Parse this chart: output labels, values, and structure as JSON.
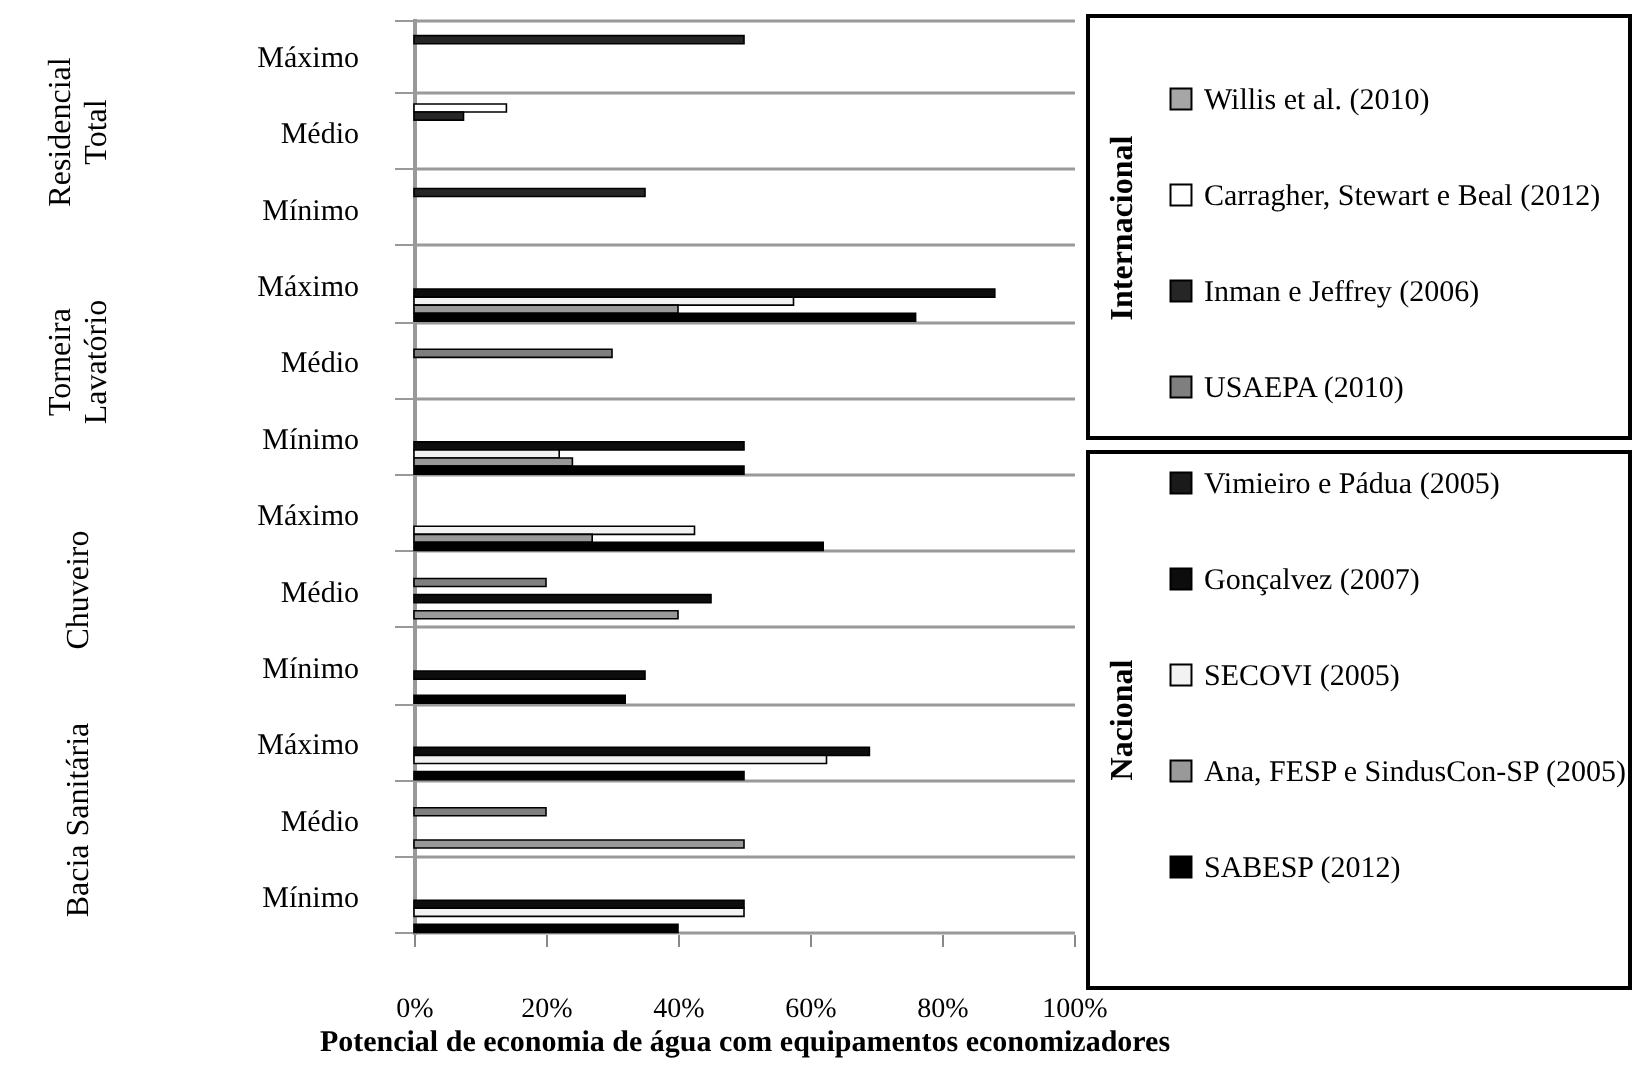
{
  "chart_data": {
    "type": "bar",
    "orientation": "horizontal",
    "categories": [
      "Máximo",
      "Médio",
      "Mínimo",
      "Máximo",
      "Médio",
      "Mínimo",
      "Máximo",
      "Médio",
      "Mínimo",
      "Máximo",
      "Médio",
      "Mínimo"
    ],
    "series": [
      {
        "name": "Willis et al. (2010)",
        "color": "#a6a6a6",
        "values": [
          null,
          null,
          null,
          null,
          null,
          null,
          null,
          null,
          null,
          null,
          null,
          null
        ]
      },
      {
        "name": "Carragher, Stewart e Beal (2012)",
        "color": "#ffffff",
        "values": [
          null,
          14,
          null,
          null,
          null,
          null,
          null,
          null,
          null,
          null,
          null,
          null
        ]
      },
      {
        "name": "Inman e Jeffrey (2006)",
        "color": "#262626",
        "values": [
          50,
          7.5,
          35,
          null,
          null,
          null,
          null,
          null,
          null,
          null,
          null,
          null
        ]
      },
      {
        "name": "USAEPA (2010)",
        "color": "#7f7f7f",
        "values": [
          null,
          null,
          null,
          null,
          30,
          null,
          null,
          20,
          null,
          null,
          20,
          null
        ]
      },
      {
        "name": "Vimieiro e Pádua (2005)",
        "color": "#1a1a1a",
        "values": [
          null,
          null,
          null,
          null,
          null,
          null,
          null,
          null,
          null,
          null,
          null,
          null
        ]
      },
      {
        "name": "Gonçalvez (2007)",
        "color": "#0d0d0d",
        "values": [
          null,
          null,
          null,
          88,
          null,
          50,
          null,
          45,
          35,
          69,
          null,
          50
        ]
      },
      {
        "name": "SECOVI (2005)",
        "color": "#f2f2f2",
        "values": [
          null,
          null,
          null,
          57.5,
          null,
          22,
          42.5,
          null,
          null,
          62.5,
          null,
          50
        ]
      },
      {
        "name": "Ana, FESP e SindusCon-SP (2005)",
        "color": "#999999",
        "values": [
          null,
          null,
          null,
          40,
          null,
          24,
          27,
          40,
          null,
          null,
          50,
          null
        ]
      },
      {
        "name": "SABESP (2012)",
        "color": "#000000",
        "values": [
          null,
          null,
          null,
          76,
          null,
          50,
          62,
          null,
          32,
          50,
          null,
          40
        ]
      }
    ],
    "xlim": [
      0,
      100
    ],
    "xticks": [
      {
        "value": 0,
        "label": "0%"
      },
      {
        "value": 20,
        "label": "20%"
      },
      {
        "value": 40,
        "label": "40%"
      },
      {
        "value": 60,
        "label": "60%"
      },
      {
        "value": 80,
        "label": "80%"
      },
      {
        "value": 100,
        "label": "100%"
      }
    ],
    "xlabel": "Potencial de economia de água com equipamentos economizadores",
    "annotations": [
      "Residencial Total",
      "Torneira Lavatório",
      "Chuveiro",
      "Bacia Sanitária",
      "Internacional",
      "Nacional"
    ],
    "grid": "y",
    "legend": "right"
  }
}
